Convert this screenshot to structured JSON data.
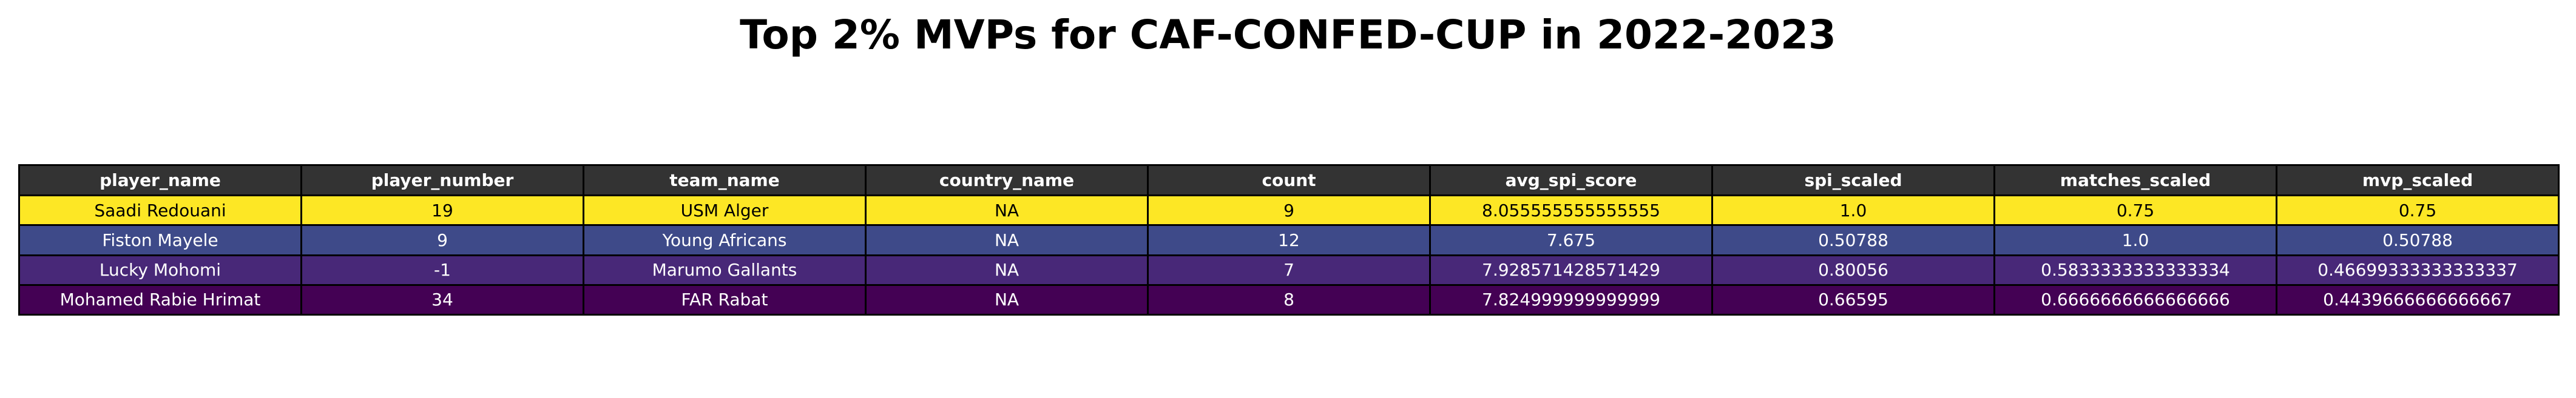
{
  "title": "Top 2% MVPs for CAF-CONFED-CUP in 2022-2023",
  "colors": {
    "header_bg": "#333333",
    "header_text": "#ffffff",
    "border": "#000000"
  },
  "chart_data": {
    "type": "table",
    "title": "Top 2% MVPs for CAF-CONFED-CUP in 2022-2023",
    "columns": [
      "player_name",
      "player_number",
      "team_name",
      "country_name",
      "count",
      "avg_spi_score",
      "spi_scaled",
      "matches_scaled",
      "mvp_scaled"
    ],
    "rows": [
      {
        "cells": [
          "Saadi Redouani",
          "19",
          "USM Alger",
          "NA",
          "9",
          "8.055555555555555",
          "1.0",
          "0.75",
          "0.75"
        ],
        "bg": "#fde725",
        "fg": "#000000"
      },
      {
        "cells": [
          "Fiston Mayele",
          "9",
          "Young Africans",
          "NA",
          "12",
          "7.675",
          "0.50788",
          "1.0",
          "0.50788"
        ],
        "bg": "#3e4a89",
        "fg": "#ffffff"
      },
      {
        "cells": [
          "Lucky Mohomi",
          "-1",
          "Marumo Gallants",
          "NA",
          "7",
          "7.928571428571429",
          "0.80056",
          "0.5833333333333334",
          "0.46699333333333337"
        ],
        "bg": "#482878",
        "fg": "#ffffff"
      },
      {
        "cells": [
          "Mohamed Rabie Hrimat",
          "34",
          "FAR Rabat",
          "NA",
          "8",
          "7.824999999999999",
          "0.66595",
          "0.6666666666666666",
          "0.4439666666666667"
        ],
        "bg": "#440154",
        "fg": "#ffffff"
      }
    ]
  }
}
